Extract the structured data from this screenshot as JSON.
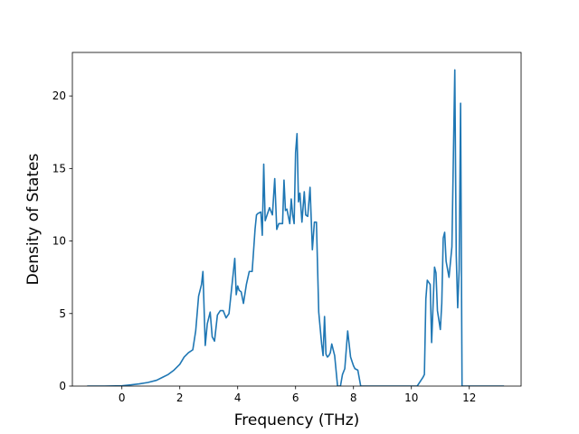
{
  "chart_data": {
    "type": "line",
    "title": "",
    "xlabel": "Frequency (THz)",
    "ylabel": "Density of States",
    "xlim": [
      -1.71,
      13.79
    ],
    "ylim": [
      0,
      23
    ],
    "xticks": [
      0,
      2,
      4,
      6,
      8,
      10,
      12
    ],
    "yticks": [
      0,
      5,
      10,
      15,
      20
    ],
    "grid": false,
    "legend": "none",
    "series": [
      {
        "color": "#1f77b4",
        "x": [
          -1.2,
          -0.6,
          0.0,
          0.3,
          0.6,
          0.9,
          1.2,
          1.4,
          1.6,
          1.8,
          2.0,
          2.15,
          2.3,
          2.45,
          2.55,
          2.65,
          2.75,
          2.8,
          2.88,
          2.95,
          3.05,
          3.12,
          3.2,
          3.3,
          3.4,
          3.5,
          3.6,
          3.7,
          3.8,
          3.9,
          3.95,
          4.0,
          4.05,
          4.12,
          4.2,
          4.3,
          4.4,
          4.5,
          4.6,
          4.65,
          4.7,
          4.8,
          4.85,
          4.9,
          4.95,
          5.0,
          5.1,
          5.2,
          5.28,
          5.35,
          5.42,
          5.55,
          5.6,
          5.65,
          5.7,
          5.8,
          5.85,
          5.9,
          5.95,
          6.0,
          6.05,
          6.1,
          6.15,
          6.22,
          6.3,
          6.35,
          6.42,
          6.5,
          6.58,
          6.65,
          6.72,
          6.8,
          6.9,
          6.95,
          7.0,
          7.05,
          7.1,
          7.15,
          7.2,
          7.25,
          7.35,
          7.45,
          7.55,
          7.62,
          7.7,
          7.8,
          7.9,
          7.95,
          8.0,
          8.05,
          8.15,
          8.25,
          8.35,
          8.45,
          8.6,
          10.2,
          10.3,
          10.4,
          10.45,
          10.5,
          10.55,
          10.65,
          10.7,
          10.8,
          10.85,
          10.9,
          11.0,
          11.05,
          11.1,
          11.15,
          11.2,
          11.3,
          11.4,
          11.5,
          11.55,
          11.6,
          11.65,
          11.7,
          11.75,
          11.8,
          11.87,
          11.95,
          12.1,
          13.2
        ],
        "values": [
          0,
          0,
          0.02,
          0.08,
          0.15,
          0.25,
          0.4,
          0.6,
          0.8,
          1.1,
          1.5,
          2.0,
          2.3,
          2.5,
          3.8,
          6.2,
          7.0,
          7.9,
          2.8,
          4.3,
          5.1,
          3.4,
          3.1,
          4.9,
          5.2,
          5.2,
          4.7,
          5.0,
          6.9,
          8.8,
          6.3,
          6.9,
          6.6,
          6.5,
          5.7,
          7.0,
          7.9,
          7.9,
          10.8,
          11.8,
          11.9,
          12.0,
          10.4,
          15.3,
          11.4,
          11.7,
          12.3,
          11.8,
          14.3,
          10.8,
          11.2,
          11.2,
          14.2,
          12.1,
          12.2,
          11.2,
          12.9,
          11.8,
          11.2,
          16.1,
          17.4,
          12.7,
          13.3,
          11.3,
          13.4,
          11.8,
          11.7,
          13.7,
          9.4,
          11.3,
          11.3,
          5.1,
          2.9,
          2.1,
          4.8,
          2.2,
          2.0,
          2.1,
          2.3,
          2.9,
          2.1,
          0.0,
          0.0,
          0.8,
          1.2,
          3.8,
          2.0,
          1.7,
          1.4,
          1.2,
          1.1,
          0.0,
          0.0,
          0.0,
          0.0,
          0.0,
          0.3,
          0.6,
          0.8,
          6.0,
          7.3,
          7.0,
          3.0,
          8.2,
          7.8,
          5.2,
          3.9,
          5.7,
          10.2,
          10.6,
          8.6,
          7.5,
          9.6,
          21.8,
          9.0,
          5.4,
          8.0,
          19.5,
          0.0,
          0.0,
          0.0,
          0.0,
          0.0,
          0.0
        ]
      }
    ]
  }
}
